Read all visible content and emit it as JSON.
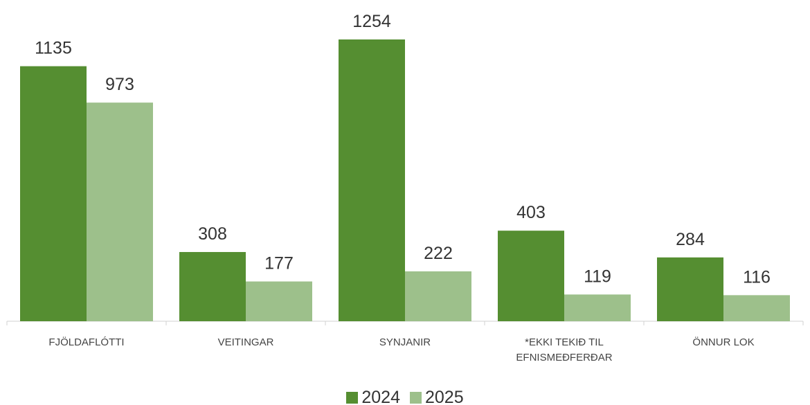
{
  "chart_data": {
    "type": "bar",
    "categories": [
      "FJÖLDAFLÓTTI",
      "VEITINGAR",
      "SYNJANIR",
      "*EKKI TEKIÐ TIL EFNISMEÐFERÐAR",
      "ÖNNUR LOK"
    ],
    "series": [
      {
        "name": "2024",
        "color": "#558e31",
        "values": [
          1135,
          308,
          1254,
          403,
          284
        ]
      },
      {
        "name": "2025",
        "color": "#9dc08b",
        "values": [
          973,
          177,
          222,
          119,
          116
        ]
      }
    ]
  }
}
